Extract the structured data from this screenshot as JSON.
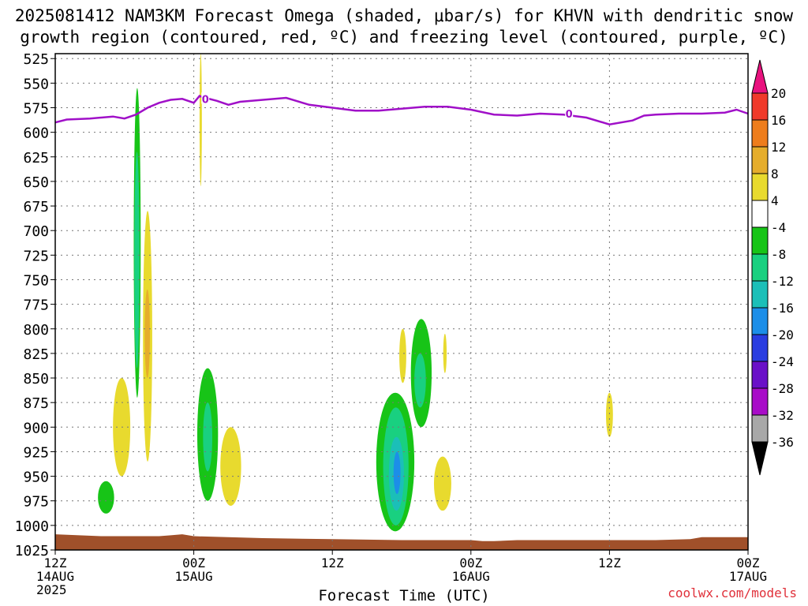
{
  "title_line1": "2025081412 NAM3KM Forecast Omega (shaded, μbar/s) for KHVN with dendritic snow",
  "title_line2": "growth region (contoured, red, ºC) and freezing level (contoured, purple, ºC)",
  "credit": "coolwx.com/models",
  "chart_data": {
    "type": "heatmap",
    "xlabel": "Forecast Time (UTC)",
    "ylabel": "",
    "x_unit": "forecast hour from 2025-08-14 12Z",
    "xlim": [
      0,
      60
    ],
    "ylim": [
      1025,
      520
    ],
    "y_ticks": [
      525,
      550,
      575,
      600,
      625,
      650,
      675,
      700,
      725,
      750,
      775,
      800,
      825,
      850,
      875,
      900,
      925,
      950,
      975,
      1000,
      1025
    ],
    "x_ticks": [
      {
        "x": 0,
        "lines": [
          "12Z",
          "14AUG",
          "2025"
        ]
      },
      {
        "x": 12,
        "lines": [
          "00Z",
          "15AUG"
        ]
      },
      {
        "x": 24,
        "lines": [
          "12Z"
        ]
      },
      {
        "x": 36,
        "lines": [
          "00Z",
          "16AUG"
        ]
      },
      {
        "x": 48,
        "lines": [
          "12Z"
        ]
      },
      {
        "x": 60,
        "lines": [
          "00Z",
          "17AUG"
        ]
      }
    ],
    "grid": true,
    "colorbar": {
      "labels": [
        "20",
        "16",
        "12",
        "8",
        "4",
        "-4",
        "-8",
        "-12",
        "-16",
        "-20",
        "-24",
        "-28",
        "-32",
        "-36"
      ],
      "colors": [
        "#e8127e",
        "#f03a2a",
        "#ee7d1c",
        "#e5ad2c",
        "#e8da2e",
        "#ffffff",
        "#17c417",
        "#19d080",
        "#1bbfb8",
        "#1c8ee8",
        "#2a3de0",
        "#6a10c8",
        "#a80cc8",
        "#a8a8a8",
        "#000000"
      ]
    },
    "freezing_level": {
      "label": "0",
      "color": "#a010c8",
      "x": [
        0,
        1,
        3,
        5,
        6,
        7,
        8,
        9,
        10,
        11,
        12,
        12.5,
        13,
        14,
        15,
        16,
        17,
        18,
        20,
        22,
        24,
        26,
        28,
        30,
        32,
        34,
        36,
        38,
        40,
        42,
        44,
        46,
        48,
        50,
        51,
        52,
        54,
        56,
        58,
        59,
        60
      ],
      "y": [
        590,
        587,
        586,
        584,
        586,
        582,
        575,
        570,
        567,
        566,
        570,
        563,
        565,
        568,
        572,
        569,
        568,
        567,
        565,
        572,
        575,
        578,
        578,
        576,
        574,
        574,
        577,
        582,
        583,
        581,
        582,
        585,
        592,
        588,
        583,
        582,
        581,
        581,
        580,
        577,
        581
      ]
    },
    "omega_regions": [
      {
        "level": "-8",
        "color": "#17c417",
        "x": [
          6.8,
          7.4
        ],
        "p": [
          555,
          870
        ]
      },
      {
        "level": "-12",
        "color": "#19d080",
        "x": [
          6.85,
          7.3
        ],
        "p": [
          620,
          840
        ]
      },
      {
        "level": "4",
        "color": "#e8da2e",
        "x": [
          12.5,
          12.7
        ],
        "p": [
          520,
          655
        ]
      },
      {
        "level": "4",
        "color": "#e8da2e",
        "x": [
          7.6,
          8.4
        ],
        "p": [
          680,
          935
        ]
      },
      {
        "level": "8",
        "color": "#e5ad2c",
        "x": [
          7.75,
          8.2
        ],
        "p": [
          760,
          850
        ]
      },
      {
        "level": "4",
        "color": "#e8da2e",
        "x": [
          5,
          6.5
        ],
        "p": [
          850,
          950
        ]
      },
      {
        "level": "-8",
        "color": "#17c417",
        "x": [
          3.7,
          5.1
        ],
        "p": [
          955,
          988
        ]
      },
      {
        "level": "-8",
        "color": "#17c417",
        "x": [
          12.3,
          14.1
        ],
        "p": [
          840,
          975
        ]
      },
      {
        "level": "-12",
        "color": "#19d080",
        "x": [
          12.8,
          13.6
        ],
        "p": [
          875,
          945
        ]
      },
      {
        "level": "4",
        "color": "#e8da2e",
        "x": [
          14.3,
          16.1
        ],
        "p": [
          900,
          980
        ]
      },
      {
        "level": "-8",
        "color": "#17c417",
        "x": [
          27.8,
          31.1
        ],
        "p": [
          865,
          1006
        ]
      },
      {
        "level": "-12",
        "color": "#19d080",
        "x": [
          28.4,
          30.6
        ],
        "p": [
          880,
          1000
        ]
      },
      {
        "level": "-16",
        "color": "#1bbfb8",
        "x": [
          28.9,
          30.2
        ],
        "p": [
          910,
          985
        ]
      },
      {
        "level": "-20",
        "color": "#1c8ee8",
        "x": [
          29.3,
          29.9
        ],
        "p": [
          925,
          968
        ]
      },
      {
        "level": "-8",
        "color": "#17c417",
        "x": [
          30.8,
          32.6
        ],
        "p": [
          790,
          900
        ]
      },
      {
        "level": "-12",
        "color": "#19d080",
        "x": [
          31.1,
          32.1
        ],
        "p": [
          825,
          880
        ]
      },
      {
        "level": "4",
        "color": "#e8da2e",
        "x": [
          29.8,
          30.4
        ],
        "p": [
          800,
          855
        ]
      },
      {
        "level": "4",
        "color": "#e8da2e",
        "x": [
          32.8,
          34.3
        ],
        "p": [
          930,
          985
        ]
      },
      {
        "level": "4",
        "color": "#e8da2e",
        "x": [
          33.6,
          33.9
        ],
        "p": [
          805,
          845
        ]
      },
      {
        "level": "4",
        "color": "#e8da2e",
        "x": [
          47.7,
          48.3
        ],
        "p": [
          865,
          910
        ]
      }
    ],
    "terrain": {
      "color": "#a0502a",
      "x": [
        0,
        4,
        9,
        10,
        11,
        12,
        18,
        24,
        30,
        36,
        37,
        38,
        40,
        45,
        52,
        55,
        56,
        58,
        60
      ],
      "p": [
        1009,
        1011,
        1011,
        1010,
        1009,
        1011,
        1013,
        1014,
        1015,
        1015,
        1016,
        1016,
        1015,
        1015,
        1015,
        1014,
        1012,
        1012,
        1012
      ]
    }
  }
}
